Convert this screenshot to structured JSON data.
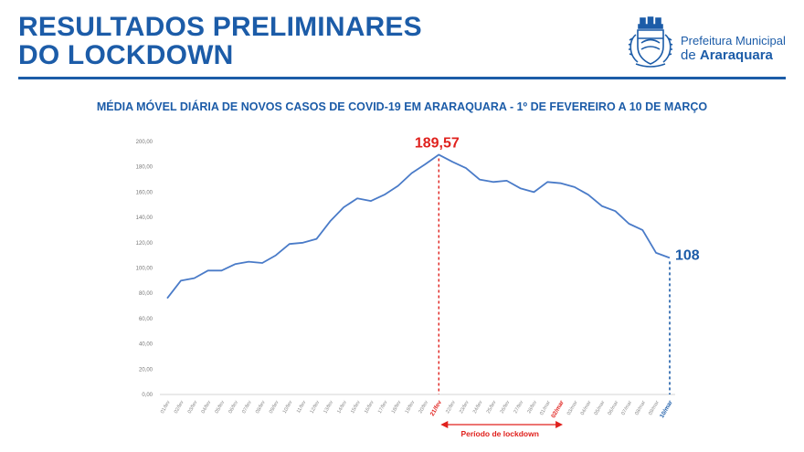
{
  "header": {
    "title_line1": "RESULTADOS PRELIMINARES",
    "title_line2": "DO LOCKDOWN",
    "org_line1": "Prefeitura Municipal",
    "org_prefix": "de",
    "org_city": "Araraquara",
    "logo_icon": "city-coat-of-arms-icon"
  },
  "colors": {
    "brand": "#1c5ca8",
    "line": "#4a7bc8",
    "accent": "#e0211d"
  },
  "chart_data": {
    "type": "line",
    "title": "MÉDIA MÓVEL DIÁRIA DE NOVOS CASOS DE COVID-19 EM ARARAQUARA - 1º DE FEVEREIRO A 10 DE MARÇO",
    "xlabel": "",
    "ylabel": "",
    "ylim": [
      0,
      200
    ],
    "y_ticks": [
      "0,00",
      "20,00",
      "40,00",
      "60,00",
      "80,00",
      "100,00",
      "120,00",
      "140,00",
      "160,00",
      "180,00",
      "200,00"
    ],
    "grid": false,
    "categories": [
      "01/fev",
      "02/fev",
      "03/fev",
      "04/fev",
      "05/fev",
      "06/fev",
      "07/fev",
      "08/fev",
      "09/fev",
      "10/fev",
      "11/fev",
      "12/fev",
      "13/fev",
      "14/fev",
      "15/fev",
      "16/fev",
      "17/fev",
      "18/fev",
      "19/fev",
      "20/fev",
      "21/fev",
      "22/fev",
      "23/fev",
      "24/fev",
      "25/fev",
      "26/fev",
      "27/fev",
      "28/fev",
      "01/mar",
      "02/mar",
      "03/mar",
      "04/mar",
      "05/mar",
      "06/mar",
      "07/mar",
      "08/mar",
      "09/mar",
      "10/mar"
    ],
    "series": [
      {
        "values": [
          76,
          90,
          92,
          98,
          98,
          103,
          105,
          104,
          110,
          119,
          120,
          123,
          137,
          148,
          155,
          153,
          158,
          165,
          175,
          182,
          189.57,
          184,
          179,
          170,
          168,
          169,
          163,
          160,
          168,
          167,
          164,
          158,
          149,
          145,
          135,
          130,
          112,
          108
        ]
      }
    ],
    "annotations": {
      "peak_value": "189,57",
      "peak_date": "21/fev",
      "end_value": "108",
      "end_date": "10/mar",
      "lockdown_end_date": "02/mar",
      "lockdown_label": "Período de lockdown"
    }
  }
}
